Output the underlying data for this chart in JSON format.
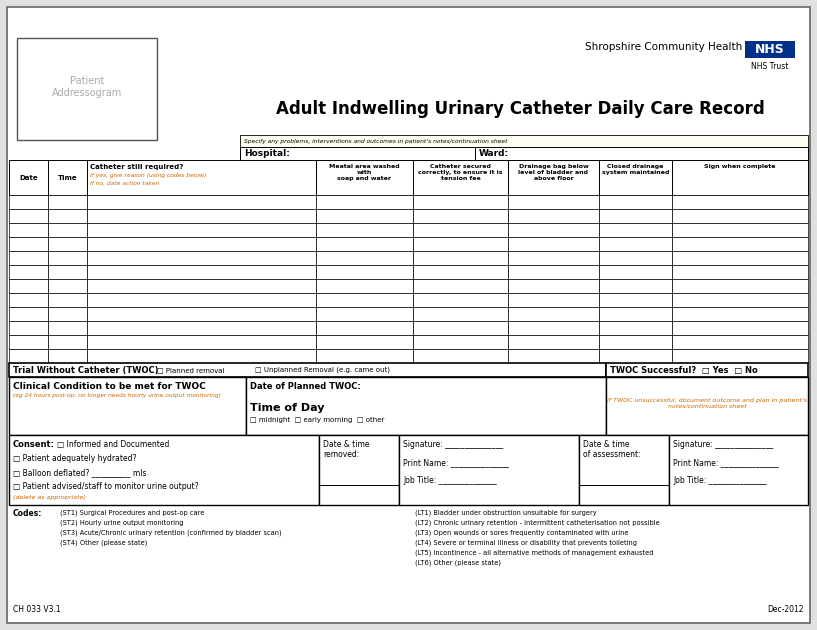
{
  "title": "Adult Indwelling Urinary Catheter Daily Care Record",
  "org_name": "Shropshire Community Health",
  "org_sub": "NHS Trust",
  "specify_text": "Specify any problems, interventions and outcomes in patient’s notes/continuation sheet",
  "hospital_label": "Hospital:",
  "ward_label": "Ward:",
  "twoc_successful": "TWOC Successful?  □ Yes  □ No",
  "clinical_condition_title": "Clinical Condition to be met for TWOC",
  "clinical_condition_sub": "(eg 24 hours post-op; no longer needs hourly urine output monitoring)",
  "date_planned_twoc": "Date of Planned TWOC:",
  "time_of_day": "Time of Day",
  "time_options": "□ midnight  □ early morning  □ other",
  "twoc_unsuccessful_text": "If TWOC unsuccessful, document outcome and plan in patient’s\nnotes/continuation sheet",
  "short_term_codes": [
    "(ST1) Surgical Procedures and post-op care",
    "(ST2) Hourly urine output monitoring",
    "(ST3) Acute/Chronic urinary retention (confirmed by bladder scan)",
    "(ST4) Other (please state)"
  ],
  "long_term_codes": [
    "(LT1) Bladder under obstruction unsuitable for surgery",
    "(LT2) Chronic urinary retention - intermittent catheterisation not possible",
    "(LT3) Open wounds or sores frequently contaminated with urine",
    "(LT4) Severe or terminal illness or disability that prevents toileting",
    "(LT5) Incontinence - all alternative methods of management exhausted",
    "(LT6) Other (please state)"
  ],
  "footer_left": "CH 033 V3.1",
  "footer_right": "Dec-2012",
  "orange_text": "#CC6600",
  "nhs_blue": "#003087"
}
